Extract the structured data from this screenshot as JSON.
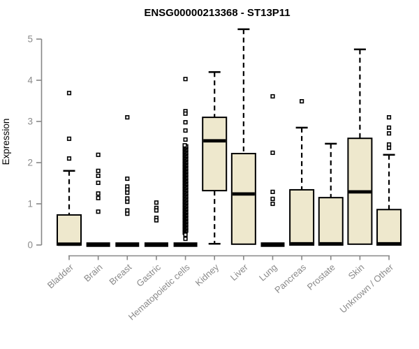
{
  "chart_data": {
    "type": "boxplot",
    "title": "ENSG00000213368 - ST13P11",
    "ylabel": "Expression",
    "xlabel": "",
    "ylim": [
      0,
      5
    ],
    "yticks": [
      0,
      1,
      2,
      3,
      4,
      5
    ],
    "grid": false,
    "legend": "none",
    "colors": {
      "box_fill": "#EEE8CD",
      "box_stroke": "#000000",
      "median": "#000000",
      "whisker": "#000000",
      "outlier_stroke": "#000000",
      "outlier_fill": "#ffffff",
      "axis_line": "#878787",
      "tick_label": "#8a8a8a",
      "title_color": "#000000"
    },
    "categories": [
      "Bladder",
      "Brain",
      "Breast",
      "Gastric",
      "Hematopoietic cells",
      "Kidney",
      "Liver",
      "Lung",
      "Pancreas",
      "Prostate",
      "Skin",
      "Unknown / Other"
    ],
    "series": [
      {
        "name": "Bladder",
        "q1": 0,
        "median": 0.02,
        "q3": 0.73,
        "whisker_low": 0,
        "whisker_high": 1.8,
        "outliers": [
          3.69,
          2.58,
          2.1
        ]
      },
      {
        "name": "Brain",
        "q1": 0,
        "median": 0.01,
        "q3": 0.02,
        "whisker_low": 0,
        "whisker_high": 0.02,
        "outliers": [
          2.19,
          1.8,
          1.68,
          1.51,
          1.25,
          1.14,
          0.81
        ]
      },
      {
        "name": "Breast",
        "q1": 0,
        "median": 0.01,
        "q3": 0.02,
        "whisker_low": 0,
        "whisker_high": 0.02,
        "outliers": [
          3.1,
          1.61,
          1.42,
          1.35,
          1.27,
          1.13,
          1.05,
          0.84,
          0.76
        ]
      },
      {
        "name": "Gastric",
        "q1": 0,
        "median": 0.01,
        "q3": 0.02,
        "whisker_low": 0,
        "whisker_high": 0.02,
        "outliers": [
          1.03,
          0.9,
          0.84,
          0.66,
          0.6
        ]
      },
      {
        "name": "Hematopoietic cells",
        "q1": 0,
        "median": 0.01,
        "q3": 0.02,
        "whisker_low": 0,
        "whisker_high": 0.02,
        "outliers": [
          4.03,
          3.25,
          3.19,
          2.98,
          2.78,
          2.56,
          0.25,
          0.15
        ],
        "outliers_dense": {
          "min": 0.3,
          "max": 2.42,
          "count": 85
        }
      },
      {
        "name": "Kidney",
        "q1": 1.32,
        "median": 2.53,
        "q3": 3.1,
        "whisker_low": 0.03,
        "whisker_high": 4.2,
        "outliers": []
      },
      {
        "name": "Liver",
        "q1": 0.02,
        "median": 1.24,
        "q3": 2.22,
        "whisker_low": 0.02,
        "whisker_high": 5.24,
        "outliers": []
      },
      {
        "name": "Lung",
        "q1": 0,
        "median": 0.01,
        "q3": 0.02,
        "whisker_low": 0,
        "whisker_high": 0.02,
        "outliers": [
          3.61,
          2.24,
          1.29,
          1.12,
          1.0
        ]
      },
      {
        "name": "Pancreas",
        "q1": 0,
        "median": 0.03,
        "q3": 1.34,
        "whisker_low": 0,
        "whisker_high": 2.85,
        "outliers": [
          3.49
        ]
      },
      {
        "name": "Prostate",
        "q1": 0,
        "median": 0.03,
        "q3": 1.15,
        "whisker_low": 0,
        "whisker_high": 2.46,
        "outliers": []
      },
      {
        "name": "Skin",
        "q1": 0.02,
        "median": 1.29,
        "q3": 2.59,
        "whisker_low": 0.02,
        "whisker_high": 4.75,
        "outliers": []
      },
      {
        "name": "Unknown / Other",
        "q1": 0,
        "median": 0.03,
        "q3": 0.86,
        "whisker_low": 0,
        "whisker_high": 2.19,
        "outliers": [
          3.1,
          2.85,
          2.71,
          2.44,
          2.36
        ]
      }
    ]
  }
}
